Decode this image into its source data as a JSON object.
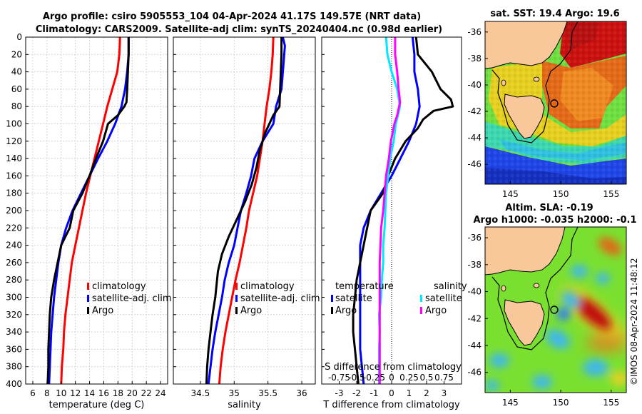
{
  "header": {
    "title_line1": "Argo profile: csiro 5905553_104 04-Apr-2024 41.17S 149.57E (NRT data)",
    "title_line2": "Climatology: CARS2009. Satellite-adj clim: synTS_20240404.nc (0.98d earlier)"
  },
  "watermark": "©IMOS 08-Apr-2024 11:48:12",
  "colors": {
    "climatology": "#ff0000",
    "satellite": "#0000ff",
    "argo": "#000000",
    "temp_sat_diff": "#0000ff",
    "sal_sat_diff": "#00e8ff",
    "sal_argo_diff": "#ff00ff"
  },
  "chart_data": [
    {
      "type": "line",
      "name": "temperature-profile",
      "xlabel": "temperature (deg C)",
      "ylabel": "",
      "xlim": [
        5,
        25
      ],
      "ylim": [
        400,
        0
      ],
      "xticks": [
        6,
        8,
        10,
        12,
        14,
        16,
        18,
        20,
        22,
        24
      ],
      "yticks": [
        0,
        20,
        40,
        60,
        80,
        100,
        120,
        140,
        160,
        180,
        200,
        220,
        240,
        260,
        280,
        300,
        320,
        340,
        360,
        380,
        400
      ],
      "grid": true,
      "legend": [
        "climatology",
        "satellite-adj. clim",
        "Argo"
      ],
      "series": [
        {
          "name": "climatology",
          "points": [
            [
              18.3,
              0
            ],
            [
              18.2,
              20
            ],
            [
              17.9,
              40
            ],
            [
              17.2,
              60
            ],
            [
              16.5,
              80
            ],
            [
              15.9,
              100
            ],
            [
              15.3,
              120
            ],
            [
              14.7,
              140
            ],
            [
              14.1,
              160
            ],
            [
              13.5,
              180
            ],
            [
              13.0,
              200
            ],
            [
              12.5,
              220
            ],
            [
              12.0,
              240
            ],
            [
              11.5,
              260
            ],
            [
              11.2,
              280
            ],
            [
              10.9,
              300
            ],
            [
              10.6,
              320
            ],
            [
              10.4,
              340
            ],
            [
              10.3,
              360
            ],
            [
              10.1,
              380
            ],
            [
              10.0,
              400
            ]
          ]
        },
        {
          "name": "satellite-adj. clim",
          "points": [
            [
              19.5,
              0
            ],
            [
              19.5,
              20
            ],
            [
              19.3,
              40
            ],
            [
              19.0,
              60
            ],
            [
              18.5,
              80
            ],
            [
              17.6,
              100
            ],
            [
              16.5,
              120
            ],
            [
              15.2,
              140
            ],
            [
              14.0,
              160
            ],
            [
              12.8,
              180
            ],
            [
              11.6,
              200
            ],
            [
              10.7,
              220
            ],
            [
              10.0,
              240
            ],
            [
              9.6,
              260
            ],
            [
              9.3,
              280
            ],
            [
              9.0,
              300
            ],
            [
              8.8,
              320
            ],
            [
              8.6,
              340
            ],
            [
              8.5,
              360
            ],
            [
              8.4,
              380
            ],
            [
              8.3,
              400
            ]
          ]
        },
        {
          "name": "Argo",
          "points": [
            [
              19.5,
              0
            ],
            [
              19.5,
              20
            ],
            [
              19.4,
              40
            ],
            [
              19.3,
              60
            ],
            [
              19.2,
              75
            ],
            [
              18.9,
              80
            ],
            [
              18.0,
              90
            ],
            [
              16.6,
              100
            ],
            [
              15.9,
              120
            ],
            [
              14.9,
              140
            ],
            [
              14.0,
              160
            ],
            [
              13.0,
              180
            ],
            [
              11.7,
              200
            ],
            [
              11.2,
              220
            ],
            [
              10.0,
              240
            ],
            [
              9.5,
              260
            ],
            [
              9.0,
              280
            ],
            [
              8.6,
              300
            ],
            [
              8.4,
              320
            ],
            [
              8.3,
              340
            ],
            [
              8.2,
              360
            ],
            [
              8.2,
              380
            ],
            [
              8.1,
              400
            ]
          ]
        }
      ]
    },
    {
      "type": "line",
      "name": "salinity-profile",
      "xlabel": "salinity",
      "xlim": [
        34.1,
        36.2
      ],
      "ylim": [
        400,
        0
      ],
      "xticks": [
        34.5,
        35,
        35.5,
        36
      ],
      "grid": true,
      "legend": [
        "climatology",
        "satellite-adj. clim",
        "Argo"
      ],
      "series": [
        {
          "name": "climatology",
          "points": [
            [
              35.58,
              0
            ],
            [
              35.57,
              20
            ],
            [
              35.55,
              40
            ],
            [
              35.52,
              60
            ],
            [
              35.48,
              80
            ],
            [
              35.45,
              100
            ],
            [
              35.42,
              120
            ],
            [
              35.38,
              140
            ],
            [
              35.34,
              160
            ],
            [
              35.28,
              180
            ],
            [
              35.22,
              200
            ],
            [
              35.18,
              220
            ],
            [
              35.13,
              240
            ],
            [
              35.08,
              260
            ],
            [
              35.02,
              280
            ],
            [
              34.97,
              300
            ],
            [
              34.92,
              320
            ],
            [
              34.87,
              340
            ],
            [
              34.83,
              360
            ],
            [
              34.8,
              380
            ],
            [
              34.78,
              400
            ]
          ]
        },
        {
          "name": "satellite-adj. clim",
          "points": [
            [
              35.72,
              0
            ],
            [
              35.75,
              10
            ],
            [
              35.73,
              30
            ],
            [
              35.7,
              60
            ],
            [
              35.62,
              80
            ],
            [
              35.58,
              100
            ],
            [
              35.42,
              120
            ],
            [
              35.3,
              140
            ],
            [
              35.25,
              160
            ],
            [
              35.18,
              180
            ],
            [
              35.1,
              200
            ],
            [
              35.05,
              220
            ],
            [
              35.0,
              240
            ],
            [
              34.92,
              260
            ],
            [
              34.86,
              280
            ],
            [
              34.82,
              300
            ],
            [
              34.77,
              320
            ],
            [
              34.72,
              340
            ],
            [
              34.68,
              360
            ],
            [
              34.65,
              380
            ],
            [
              34.62,
              400
            ]
          ]
        },
        {
          "name": "Argo",
          "points": [
            [
              35.7,
              0
            ],
            [
              35.7,
              20
            ],
            [
              35.69,
              40
            ],
            [
              35.68,
              60
            ],
            [
              35.67,
              80
            ],
            [
              35.58,
              90
            ],
            [
              35.46,
              110
            ],
            [
              35.38,
              130
            ],
            [
              35.33,
              150
            ],
            [
              35.26,
              170
            ],
            [
              35.16,
              190
            ],
            [
              35.04,
              210
            ],
            [
              34.92,
              230
            ],
            [
              34.82,
              250
            ],
            [
              34.76,
              270
            ],
            [
              34.72,
              300
            ],
            [
              34.68,
              320
            ],
            [
              34.65,
              340
            ],
            [
              34.62,
              360
            ],
            [
              34.6,
              380
            ],
            [
              34.59,
              400
            ]
          ]
        }
      ]
    },
    {
      "type": "line",
      "name": "difference-profile",
      "xlabel": "T difference from climatology",
      "xlabel_top": "S difference from climatology",
      "xlim": [
        -4,
        4
      ],
      "ylim": [
        400,
        0
      ],
      "xticks": [
        -3,
        -2,
        -1,
        0,
        1,
        2,
        3
      ],
      "xticks_top_labels": [
        "-0.75",
        "-0.5",
        "-0.25",
        "0",
        "0.25",
        "0.5",
        "0.75"
      ],
      "legend_temperature_title": "temperature",
      "legend_salinity_title": "salinity",
      "legend_temperature": [
        "satellite",
        "Argo"
      ],
      "legend_salinity": [
        "satellite",
        "Argo"
      ],
      "series": [
        {
          "name": "temperature satellite",
          "points": [
            [
              1.2,
              0
            ],
            [
              1.3,
              20
            ],
            [
              1.3,
              40
            ],
            [
              1.5,
              60
            ],
            [
              1.6,
              80
            ],
            [
              1.4,
              100
            ],
            [
              1.0,
              120
            ],
            [
              0.5,
              140
            ],
            [
              0.0,
              160
            ],
            [
              -0.6,
              180
            ],
            [
              -1.2,
              200
            ],
            [
              -1.6,
              220
            ],
            [
              -1.8,
              240
            ],
            [
              -1.8,
              260
            ],
            [
              -1.8,
              280
            ],
            [
              -1.8,
              300
            ],
            [
              -1.8,
              320
            ],
            [
              -1.8,
              340
            ],
            [
              -1.8,
              360
            ],
            [
              -1.7,
              380
            ],
            [
              -1.6,
              400
            ]
          ]
        },
        {
          "name": "temperature Argo",
          "points": [
            [
              1.4,
              0
            ],
            [
              1.5,
              20
            ],
            [
              2.3,
              40
            ],
            [
              2.8,
              60
            ],
            [
              3.4,
              72
            ],
            [
              3.5,
              80
            ],
            [
              2.4,
              85
            ],
            [
              1.8,
              95
            ],
            [
              1.5,
              105
            ],
            [
              0.8,
              120
            ],
            [
              0.2,
              140
            ],
            [
              -0.2,
              160
            ],
            [
              -0.5,
              180
            ],
            [
              -1.2,
              200
            ],
            [
              -1.6,
              240
            ],
            [
              -1.8,
              260
            ],
            [
              -2.0,
              280
            ],
            [
              -2.1,
              300
            ],
            [
              -2.2,
              320
            ],
            [
              -2.2,
              340
            ],
            [
              -2.1,
              360
            ],
            [
              -2.0,
              380
            ],
            [
              -1.9,
              400
            ]
          ]
        },
        {
          "name": "salinity satellite",
          "points": [
            [
              -0.08,
              0
            ],
            [
              -0.06,
              20
            ],
            [
              0.0,
              40
            ],
            [
              0.08,
              60
            ],
            [
              0.12,
              80
            ],
            [
              0.06,
              100
            ],
            [
              0.03,
              120
            ],
            [
              -0.02,
              140
            ],
            [
              -0.05,
              160
            ],
            [
              -0.08,
              180
            ],
            [
              -0.09,
              200
            ],
            [
              -0.1,
              220
            ],
            [
              -0.12,
              240
            ],
            [
              -0.12,
              260
            ],
            [
              -0.14,
              280
            ],
            [
              -0.15,
              300
            ],
            [
              -0.18,
              320
            ],
            [
              -0.17,
              340
            ],
            [
              -0.18,
              360
            ],
            [
              -0.18,
              380
            ],
            [
              -0.18,
              400
            ]
          ]
        },
        {
          "name": "salinity Argo",
          "points": [
            [
              0.05,
              0
            ],
            [
              0.05,
              20
            ],
            [
              0.08,
              40
            ],
            [
              0.1,
              60
            ],
            [
              0.12,
              75
            ],
            [
              0.08,
              90
            ],
            [
              0.04,
              100
            ],
            [
              -0.01,
              120
            ],
            [
              -0.04,
              140
            ],
            [
              -0.08,
              160
            ],
            [
              -0.1,
              180
            ],
            [
              -0.12,
              200
            ],
            [
              -0.15,
              220
            ],
            [
              -0.16,
              240
            ],
            [
              -0.17,
              260
            ],
            [
              -0.17,
              280
            ],
            [
              -0.17,
              300
            ],
            [
              -0.17,
              320
            ],
            [
              -0.17,
              340
            ],
            [
              -0.17,
              360
            ],
            [
              -0.17,
              380
            ],
            [
              -0.17,
              400
            ]
          ]
        }
      ]
    },
    {
      "type": "heatmap",
      "name": "sst-map",
      "title": "sat. SST: 19.4 Argo: 19.6",
      "xticks": [
        145,
        150,
        155
      ],
      "yticks": [
        -36,
        -38,
        -40,
        -42,
        -44,
        -46
      ],
      "xlim": [
        142.5,
        156.5
      ],
      "ylim": [
        -47.5,
        -35.2
      ],
      "profile_location": [
        149.57,
        -41.17
      ]
    },
    {
      "type": "heatmap",
      "name": "sla-map",
      "title": "Altim. SLA: -0.19",
      "subtitle": "Argo h1000: -0.035 h2000: -0.1",
      "xticks": [
        145,
        150,
        155
      ],
      "yticks": [
        -36,
        -38,
        -40,
        -42,
        -44,
        -46
      ],
      "xlim": [
        142.5,
        156.5
      ],
      "ylim": [
        -47.5,
        -35.2
      ],
      "profile_location": [
        149.57,
        -41.17
      ]
    }
  ]
}
